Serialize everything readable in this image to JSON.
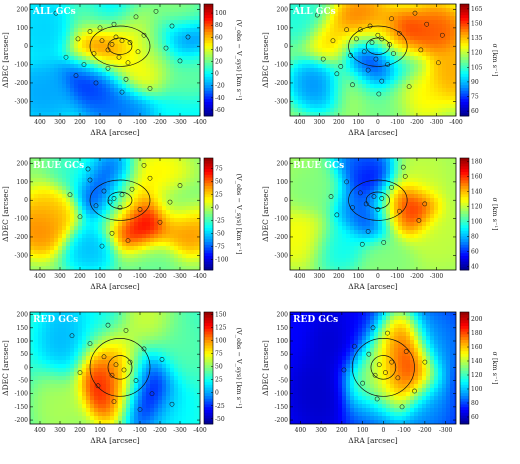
{
  "chart_data": [
    {
      "type": "heatmap",
      "title": "ALL GCs",
      "xlabel": "ΔRA [arcsec]",
      "ylabel": "ΔDEC [arcsec]",
      "xlim": [
        450,
        -400
      ],
      "ylim": [
        -380,
        230
      ],
      "xticks": [
        400,
        300,
        200,
        100,
        0,
        -100,
        -200,
        -300,
        -400
      ],
      "yticks": [
        200,
        100,
        0,
        -100,
        -200,
        -300
      ],
      "colorbar": {
        "label": "(V_obs − V_sys) [km s⁻¹]",
        "ticks": [
          100,
          80,
          60,
          40,
          20,
          0,
          -20,
          -40,
          -60
        ],
        "range": [
          -70,
          115
        ]
      },
      "ellipses": [
        {
          "rx": 150,
          "ry": 110
        },
        {
          "rx": 60,
          "ry": 45
        }
      ],
      "field": [
        {
          "x": 60,
          "y": 10,
          "v": 100
        },
        {
          "x": 110,
          "y": -20,
          "v": 90
        },
        {
          "x": -40,
          "y": 30,
          "v": 80
        },
        {
          "x": -60,
          "y": 110,
          "v": 40
        },
        {
          "x": 30,
          "y": 130,
          "v": -30
        },
        {
          "x": 130,
          "y": 130,
          "v": 20
        },
        {
          "x": -130,
          "y": 30,
          "v": 10
        },
        {
          "x": 150,
          "y": -140,
          "v": -50
        },
        {
          "x": 80,
          "y": -220,
          "v": -40
        },
        {
          "x": -70,
          "y": -130,
          "v": 60
        },
        {
          "x": -180,
          "y": -50,
          "v": 40
        },
        {
          "x": -300,
          "y": 30,
          "v": -40
        },
        {
          "x": -350,
          "y": -120,
          "v": 20
        },
        {
          "x": 350,
          "y": 90,
          "v": -10
        },
        {
          "x": 380,
          "y": -250,
          "v": -20
        },
        {
          "x": -280,
          "y": 160,
          "v": 30
        },
        {
          "x": 0,
          "y": -330,
          "v": -30
        },
        {
          "x": -20,
          "y": -60,
          "v": 30
        }
      ],
      "base": 0,
      "points": [
        [
          40,
          10
        ],
        [
          -10,
          30
        ],
        [
          60,
          -20
        ],
        [
          20,
          50
        ],
        [
          -50,
          20
        ],
        [
          90,
          30
        ],
        [
          130,
          -40
        ],
        [
          -120,
          60
        ],
        [
          -90,
          -30
        ],
        [
          150,
          80
        ],
        [
          210,
          40
        ],
        [
          270,
          -60
        ],
        [
          -230,
          -10
        ],
        [
          -260,
          110
        ],
        [
          60,
          -120
        ],
        [
          -30,
          -180
        ],
        [
          120,
          -200
        ],
        [
          -150,
          -230
        ],
        [
          220,
          -160
        ],
        [
          -300,
          -80
        ],
        [
          320,
          180
        ],
        [
          -80,
          160
        ],
        [
          30,
          120
        ],
        [
          -180,
          190
        ],
        [
          5,
          -60
        ],
        [
          -40,
          -90
        ],
        [
          100,
          100
        ],
        [
          -10,
          -250
        ],
        [
          180,
          -100
        ],
        [
          -340,
          50
        ]
      ]
    },
    {
      "type": "heatmap",
      "title": "ALL GCs",
      "xlabel": "ΔRA [arcsec]",
      "ylabel": "ΔDEC [arcsec]",
      "xlim": [
        450,
        -400
      ],
      "ylim": [
        -380,
        230
      ],
      "xticks": [
        400,
        300,
        200,
        100,
        0,
        -100,
        -200,
        -300,
        -400
      ],
      "yticks": [
        200,
        100,
        0,
        -100,
        -200,
        -300
      ],
      "colorbar": {
        "label": "σ [km s⁻¹]",
        "ticks": [
          165,
          150,
          135,
          120,
          105,
          90,
          75,
          60
        ],
        "range": [
          55,
          170
        ]
      },
      "ellipses": [
        {
          "rx": 150,
          "ry": 110
        },
        {
          "rx": 60,
          "ry": 45
        }
      ],
      "field": [
        {
          "x": 50,
          "y": -40,
          "v": 60
        },
        {
          "x": 10,
          "y": -120,
          "v": 65
        },
        {
          "x": -110,
          "y": -90,
          "v": 100
        },
        {
          "x": -120,
          "y": 40,
          "v": 160
        },
        {
          "x": 80,
          "y": 120,
          "v": 150
        },
        {
          "x": 220,
          "y": 20,
          "v": 135
        },
        {
          "x": -300,
          "y": 80,
          "v": 150
        },
        {
          "x": 300,
          "y": -200,
          "v": 80
        },
        {
          "x": -200,
          "y": -250,
          "v": 130
        },
        {
          "x": -50,
          "y": -300,
          "v": 110
        },
        {
          "x": 400,
          "y": 150,
          "v": 100
        },
        {
          "x": -380,
          "y": -150,
          "v": 140
        },
        {
          "x": 120,
          "y": -200,
          "v": 120
        },
        {
          "x": 0,
          "y": 60,
          "v": 130
        }
      ],
      "base": 115,
      "points": [
        [
          30,
          20
        ],
        [
          -20,
          40
        ],
        [
          70,
          -30
        ],
        [
          0,
          60
        ],
        [
          -60,
          10
        ],
        [
          110,
          40
        ],
        [
          140,
          -50
        ],
        [
          -110,
          70
        ],
        [
          -80,
          -40
        ],
        [
          160,
          90
        ],
        [
          230,
          30
        ],
        [
          280,
          -70
        ],
        [
          -220,
          -20
        ],
        [
          -250,
          120
        ],
        [
          50,
          -130
        ],
        [
          -20,
          -190
        ],
        [
          130,
          -210
        ],
        [
          -160,
          -220
        ],
        [
          210,
          -150
        ],
        [
          -310,
          -90
        ],
        [
          310,
          170
        ],
        [
          -70,
          150
        ],
        [
          40,
          110
        ],
        [
          -190,
          180
        ],
        [
          10,
          -70
        ],
        [
          -50,
          -100
        ],
        [
          90,
          90
        ],
        [
          -5,
          -260
        ],
        [
          190,
          -110
        ],
        [
          -330,
          60
        ]
      ]
    },
    {
      "type": "heatmap",
      "title": "BLUE GCs",
      "xlabel": "ΔRA [arcsec]",
      "ylabel": "ΔDEC [arcsec]",
      "xlim": [
        450,
        -400
      ],
      "ylim": [
        -380,
        230
      ],
      "xticks": [
        400,
        300,
        200,
        100,
        0,
        -100,
        -200,
        -300,
        -400
      ],
      "yticks": [
        200,
        100,
        0,
        -100,
        -200,
        -300
      ],
      "colorbar": {
        "label": "(V_obs − V_sys) [km s⁻¹]",
        "ticks": [
          75,
          50,
          25,
          0,
          -25,
          -50,
          -75,
          -100
        ],
        "range": [
          -120,
          95
        ]
      },
      "ellipses": [
        {
          "rx": 150,
          "ry": 110
        },
        {
          "rx": 60,
          "ry": 45
        }
      ],
      "field": [
        {
          "x": -110,
          "y": -110,
          "v": 90
        },
        {
          "x": -80,
          "y": -150,
          "v": 80
        },
        {
          "x": 380,
          "y": -150,
          "v": 50
        },
        {
          "x": 330,
          "y": -60,
          "v": 30
        },
        {
          "x": 80,
          "y": 10,
          "v": -110
        },
        {
          "x": 60,
          "y": 110,
          "v": -100
        },
        {
          "x": -30,
          "y": 30,
          "v": 40
        },
        {
          "x": -200,
          "y": 120,
          "v": 20
        },
        {
          "x": -320,
          "y": -150,
          "v": 50
        },
        {
          "x": -280,
          "y": -30,
          "v": -20
        },
        {
          "x": 150,
          "y": -250,
          "v": -60
        },
        {
          "x": -150,
          "y": -300,
          "v": -20
        },
        {
          "x": 200,
          "y": 150,
          "v": -30
        },
        {
          "x": 0,
          "y": -60,
          "v": -10
        }
      ],
      "base": -10,
      "points": [
        [
          30,
          10
        ],
        [
          -10,
          30
        ],
        [
          50,
          -10
        ],
        [
          0,
          -40
        ],
        [
          80,
          50
        ],
        [
          -60,
          60
        ],
        [
          120,
          -30
        ],
        [
          -100,
          -50
        ],
        [
          150,
          110
        ],
        [
          -150,
          120
        ],
        [
          200,
          -90
        ],
        [
          -200,
          -120
        ],
        [
          40,
          -180
        ],
        [
          -40,
          -220
        ],
        [
          250,
          30
        ],
        [
          -250,
          -10
        ],
        [
          90,
          -250
        ],
        [
          -120,
          190
        ],
        [
          160,
          170
        ],
        [
          -300,
          80
        ]
      ]
    },
    {
      "type": "heatmap",
      "title": "BLUE GCs",
      "xlabel": "ΔRA [arcsec]",
      "ylabel": "ΔDEC [arcsec]",
      "xlim": [
        450,
        -400
      ],
      "ylim": [
        -380,
        230
      ],
      "xticks": [
        400,
        300,
        200,
        100,
        0,
        -100,
        -200,
        -300
      ],
      "yticks": [
        200,
        100,
        0,
        -100,
        -200,
        -300
      ],
      "colorbar": {
        "label": "σ [km s⁻¹]",
        "ticks": [
          180,
          160,
          140,
          120,
          100,
          80,
          60,
          40
        ],
        "range": [
          35,
          185
        ]
      },
      "ellipses": [
        {
          "rx": 150,
          "ry": 110
        },
        {
          "rx": 60,
          "ry": 45
        }
      ],
      "field": [
        {
          "x": -90,
          "y": -20,
          "v": 175
        },
        {
          "x": -150,
          "y": -60,
          "v": 165
        },
        {
          "x": 20,
          "y": 80,
          "v": 40
        },
        {
          "x": 10,
          "y": -80,
          "v": 45
        },
        {
          "x": 100,
          "y": -30,
          "v": 70
        },
        {
          "x": 80,
          "y": 200,
          "v": 60
        },
        {
          "x": -200,
          "y": 120,
          "v": 120
        },
        {
          "x": 300,
          "y": 50,
          "v": 110
        },
        {
          "x": -300,
          "y": -200,
          "v": 120
        },
        {
          "x": 200,
          "y": -250,
          "v": 90
        },
        {
          "x": -50,
          "y": -300,
          "v": 110
        },
        {
          "x": 380,
          "y": -200,
          "v": 130
        }
      ],
      "base": 115,
      "points": [
        [
          20,
          20
        ],
        [
          -20,
          10
        ],
        [
          60,
          -20
        ],
        [
          0,
          -50
        ],
        [
          90,
          40
        ],
        [
          -70,
          70
        ],
        [
          130,
          -40
        ],
        [
          -110,
          -60
        ],
        [
          160,
          100
        ],
        [
          -140,
          130
        ],
        [
          210,
          -80
        ],
        [
          -210,
          -110
        ],
        [
          50,
          -170
        ],
        [
          -30,
          -230
        ],
        [
          240,
          20
        ],
        [
          -240,
          -20
        ],
        [
          80,
          -240
        ],
        [
          -130,
          180
        ]
      ]
    },
    {
      "type": "heatmap",
      "title": "RED GCs",
      "xlabel": "ΔRA [arcsec]",
      "ylabel": "ΔDEC [arcsec]",
      "xlim": [
        450,
        -400
      ],
      "ylim": [
        -215,
        210
      ],
      "xticks": [
        400,
        300,
        200,
        100,
        0,
        -100,
        -200,
        -300,
        -400
      ],
      "yticks": [
        200,
        150,
        100,
        50,
        0,
        -50,
        -100,
        -150,
        -200
      ],
      "colorbar": {
        "label": "(V_obs − V_sys) [km s⁻¹]",
        "ticks": [
          150,
          125,
          100,
          75,
          50,
          25,
          0,
          -25,
          -50
        ],
        "range": [
          -60,
          155
        ]
      },
      "ellipses": [
        {
          "rx": 150,
          "ry": 110
        },
        {
          "rx": 60,
          "ry": 45
        }
      ],
      "field": [
        {
          "x": 60,
          "y": -20,
          "v": 150
        },
        {
          "x": 40,
          "y": -40,
          "v": 140
        },
        {
          "x": -10,
          "y": -20,
          "v": 130
        },
        {
          "x": -100,
          "y": -40,
          "v": -50
        },
        {
          "x": -130,
          "y": -90,
          "v": -55
        },
        {
          "x": 10,
          "y": 30,
          "v": 40
        },
        {
          "x": -130,
          "y": 150,
          "v": 70
        },
        {
          "x": 250,
          "y": 100,
          "v": 0
        },
        {
          "x": -280,
          "y": 60,
          "v": 40
        },
        {
          "x": 300,
          "y": -150,
          "v": 60
        },
        {
          "x": -250,
          "y": -170,
          "v": 20
        },
        {
          "x": 100,
          "y": 150,
          "v": 20
        }
      ],
      "base": 30,
      "points": [
        [
          20,
          10
        ],
        [
          -20,
          -10
        ],
        [
          40,
          -30
        ],
        [
          -50,
          20
        ],
        [
          80,
          40
        ],
        [
          -80,
          -50
        ],
        [
          110,
          -70
        ],
        [
          -120,
          70
        ],
        [
          150,
          90
        ],
        [
          -160,
          -100
        ],
        [
          30,
          -130
        ],
        [
          -30,
          140
        ],
        [
          200,
          -20
        ],
        [
          -210,
          30
        ],
        [
          60,
          160
        ],
        [
          -100,
          -160
        ],
        [
          240,
          120
        ],
        [
          -260,
          -140
        ]
      ]
    },
    {
      "type": "heatmap",
      "title": "RED GCs",
      "xlabel": "ΔRA [arcsec]",
      "ylabel": "ΔDEC [arcsec]",
      "xlim": [
        450,
        -350
      ],
      "ylim": [
        -215,
        210
      ],
      "xticks": [
        400,
        300,
        200,
        100,
        0,
        -100,
        -200,
        -300
      ],
      "yticks": [
        200,
        150,
        100,
        50,
        0,
        -50,
        -100,
        -150,
        -200
      ],
      "colorbar": {
        "label": "σ [km s⁻¹]",
        "ticks": [
          200,
          180,
          160,
          140,
          120,
          100,
          80,
          60
        ],
        "range": [
          50,
          210
        ]
      },
      "ellipses": [
        {
          "rx": 150,
          "ry": 110
        },
        {
          "rx": 60,
          "ry": 45
        }
      ],
      "field": [
        {
          "x": -80,
          "y": 20,
          "v": 200
        },
        {
          "x": -120,
          "y": -20,
          "v": 195
        },
        {
          "x": -50,
          "y": 80,
          "v": 180
        },
        {
          "x": 20,
          "y": 10,
          "v": 120
        },
        {
          "x": 60,
          "y": -40,
          "v": 140
        },
        {
          "x": -20,
          "y": -60,
          "v": 170
        },
        {
          "x": 200,
          "y": 80,
          "v": 60
        },
        {
          "x": 300,
          "y": -100,
          "v": 60
        },
        {
          "x": -250,
          "y": 100,
          "v": 90
        },
        {
          "x": -200,
          "y": -150,
          "v": 90
        },
        {
          "x": 100,
          "y": 150,
          "v": 70
        },
        {
          "x": 50,
          "y": -170,
          "v": 80
        }
      ],
      "base": 70,
      "points": [
        [
          20,
          10
        ],
        [
          -10,
          -20
        ],
        [
          40,
          -30
        ],
        [
          -40,
          20
        ],
        [
          70,
          50
        ],
        [
          -70,
          -40
        ],
        [
          100,
          -60
        ],
        [
          -110,
          60
        ],
        [
          140,
          80
        ],
        [
          -150,
          -90
        ],
        [
          30,
          -120
        ],
        [
          -20,
          130
        ],
        [
          190,
          -10
        ],
        [
          -200,
          20
        ],
        [
          50,
          150
        ],
        [
          -90,
          -150
        ]
      ]
    }
  ]
}
